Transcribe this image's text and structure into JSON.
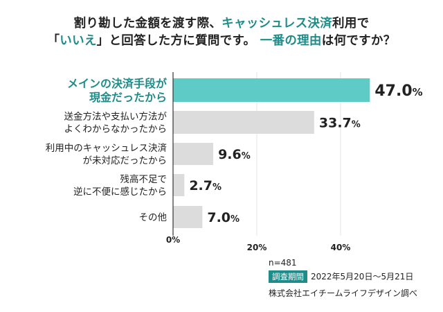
{
  "title": {
    "line1": [
      {
        "text": "割り勘した金額を渡す際、",
        "highlight": false
      },
      {
        "text": "キャッシュレス決済",
        "highlight": true
      },
      {
        "text": "利用で",
        "highlight": false
      }
    ],
    "line2": [
      {
        "text": "「",
        "highlight": false
      },
      {
        "text": "いいえ",
        "highlight": true
      },
      {
        "text": "」と回答した方に質問です。 ",
        "highlight": false
      },
      {
        "text": "一番の理由",
        "highlight": true
      },
      {
        "text": "は何ですか？",
        "highlight": false
      }
    ]
  },
  "colors": {
    "highlight_bar": "#5ecbc6",
    "bar": "#dcdcdc",
    "accent_text": "#1f8c89"
  },
  "chart_data": {
    "type": "bar",
    "orientation": "horizontal",
    "categories": [
      [
        "メインの決済手段が",
        "現金だったから"
      ],
      [
        "送金方法や支払い方法が",
        "よくわからなかったから"
      ],
      [
        "利用中のキャッシュレス決済",
        "が未対応だったから"
      ],
      [
        "残高不足で",
        "逆に不便に感じたから"
      ],
      [
        "その他"
      ]
    ],
    "values": [
      47.0,
      33.7,
      9.6,
      2.7,
      7.0
    ],
    "value_labels": [
      "47.0",
      "33.7",
      "9.6",
      "2.7",
      "7.0"
    ],
    "unit": "%",
    "highlighted_index": 0,
    "xlim": [
      0,
      50
    ],
    "xticks": [
      0,
      20,
      40
    ],
    "xtick_labels": [
      "0%",
      "20%",
      "40%"
    ],
    "grid": true
  },
  "footer": {
    "n": "n=481",
    "period_label": "調査期間",
    "period": "2022年5月20日～5月21日",
    "source": "株式会社エイチームライフデザイン調べ"
  }
}
